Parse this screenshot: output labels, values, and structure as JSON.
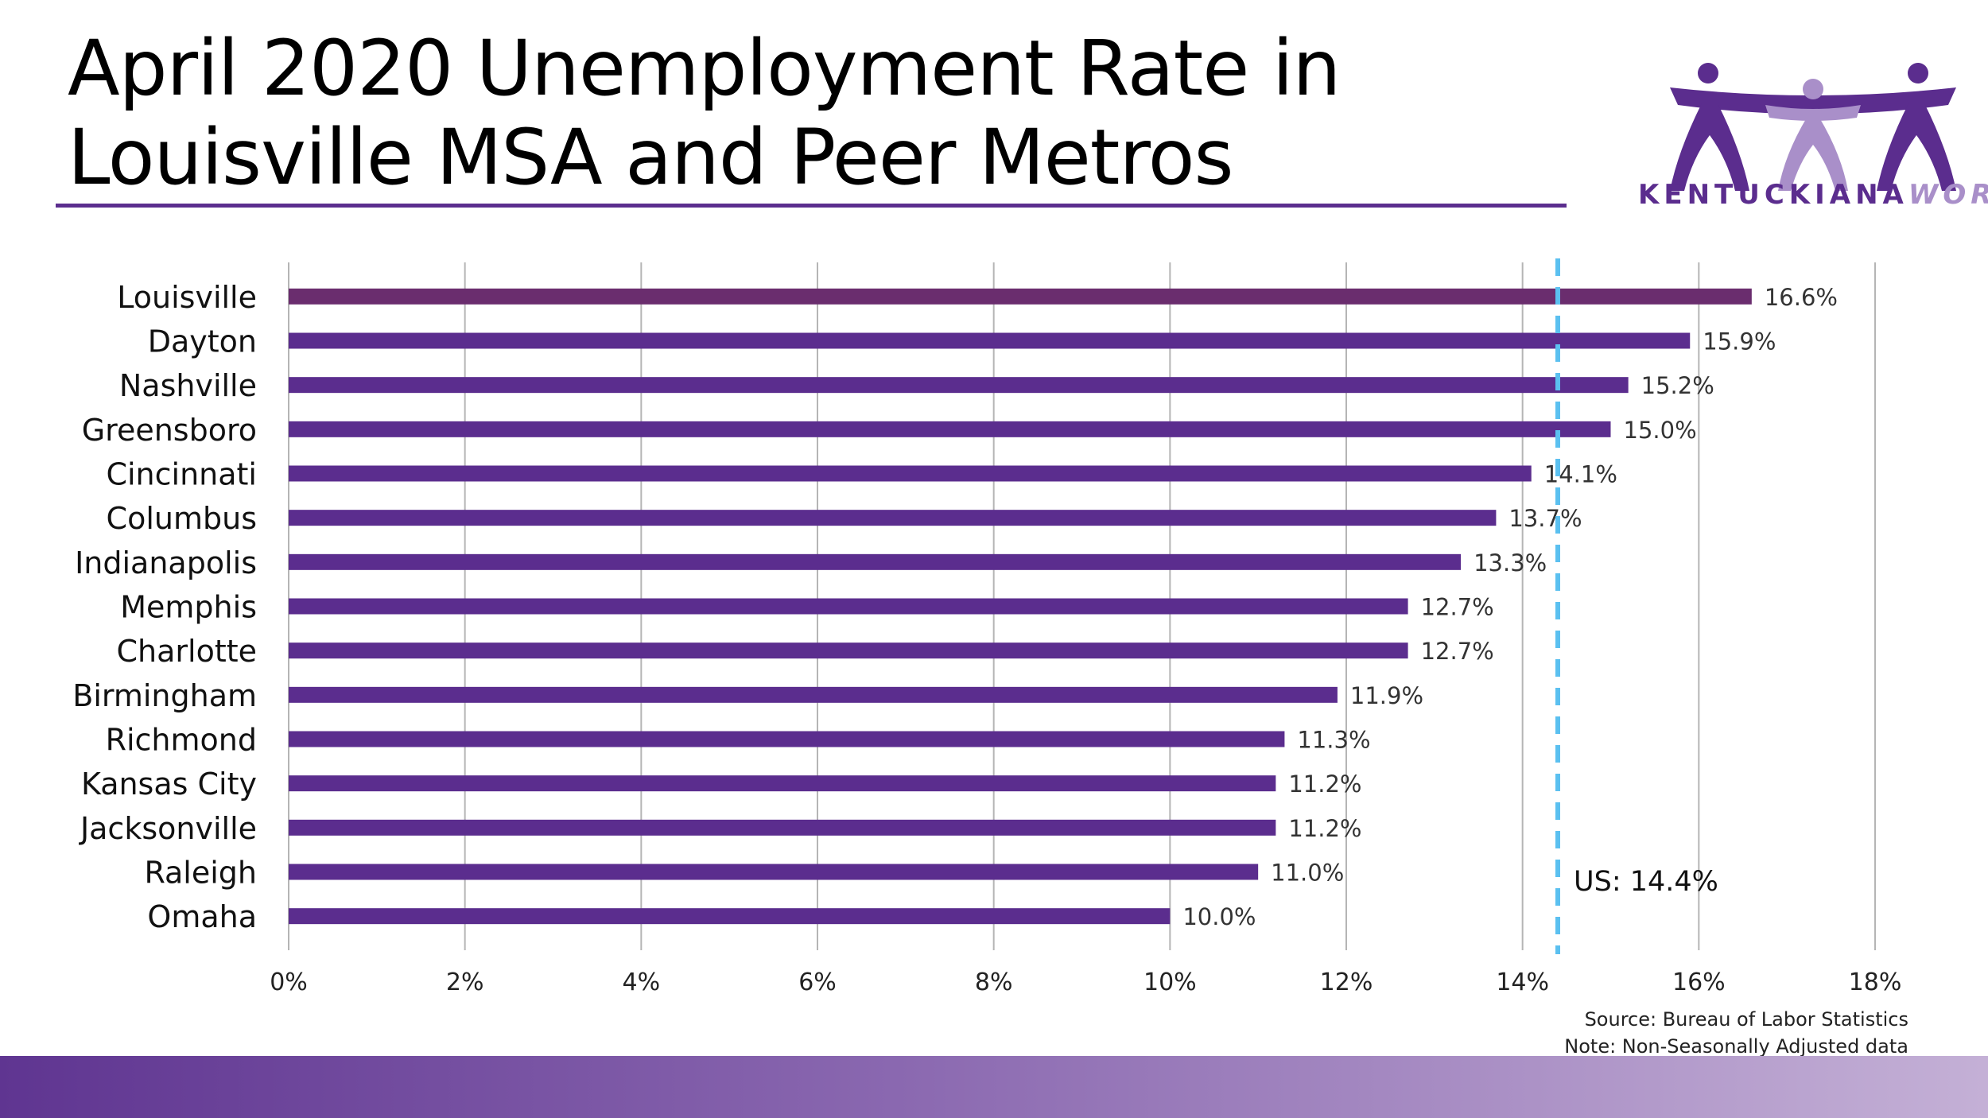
{
  "header": {
    "title_line1": "April 2020 Unemployment Rate in",
    "title_line2": "Louisville MSA and Peer Metros"
  },
  "logo": {
    "text_part1": "KENTUCKIANA",
    "text_part2": "WORKS",
    "icon": "three-people-holding-hands-icon"
  },
  "chart_data": {
    "type": "bar",
    "orientation": "horizontal",
    "categories": [
      "Louisville",
      "Dayton",
      "Nashville",
      "Greensboro",
      "Cincinnati",
      "Columbus",
      "Indianapolis",
      "Memphis",
      "Charlotte",
      "Birmingham",
      "Richmond",
      "Kansas City",
      "Jacksonville",
      "Raleigh",
      "Omaha"
    ],
    "values": [
      16.6,
      15.9,
      15.2,
      15.0,
      14.1,
      13.7,
      13.3,
      12.7,
      12.7,
      11.9,
      11.3,
      11.2,
      11.2,
      11.0,
      10.0
    ],
    "value_labels": [
      "16.6%",
      "15.9%",
      "15.2%",
      "15.0%",
      "14.1%",
      "13.7%",
      "13.3%",
      "12.7%",
      "12.7%",
      "11.9%",
      "11.3%",
      "11.2%",
      "11.2%",
      "11.0%",
      "10.0%"
    ],
    "xlim": [
      0,
      18
    ],
    "xticks": [
      0,
      2,
      4,
      6,
      8,
      10,
      12,
      14,
      16,
      18
    ],
    "xtick_labels": [
      "0%",
      "2%",
      "4%",
      "6%",
      "8%",
      "10%",
      "12%",
      "14%",
      "16%",
      "18%"
    ],
    "grid": "vertical",
    "reference_line": {
      "value": 14.4,
      "label": "US: 14.4%"
    },
    "colors": {
      "bar": "#5b2d8e",
      "highlight_bar": "#6a2d6e",
      "reference_line": "#5bc0f0",
      "grid": "#b5b5b5"
    }
  },
  "footer": {
    "source": "Source: Bureau of Labor Statistics",
    "note": "Note: Non-Seasonally Adjusted data"
  }
}
